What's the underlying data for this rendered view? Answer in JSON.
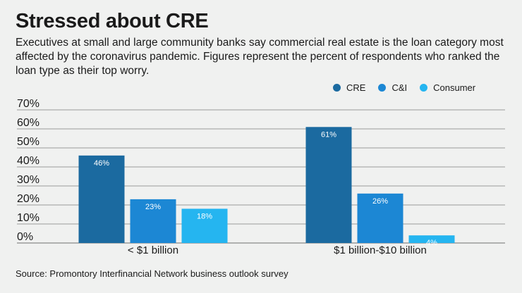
{
  "title": "Stressed about CRE",
  "subtitle": "Executives at small and large community banks say commercial real estate is the loan category most affected by the coronavirus pandemic. Figures represent the percent of respondents who ranked the loan type as their top worry.",
  "source": "Source: Promontory Interfinancial Network business outlook survey",
  "chart_data": {
    "type": "bar",
    "categories": [
      "< $1 billion",
      "$1 billion-$10 billion"
    ],
    "series": [
      {
        "name": "CRE",
        "color": "#1b6aa0",
        "values": [
          46,
          61
        ],
        "labels": [
          "46%",
          "61%"
        ]
      },
      {
        "name": "C&I",
        "color": "#1c87d4",
        "values": [
          23,
          26
        ],
        "labels": [
          "23%",
          "26%"
        ]
      },
      {
        "name": "Consumer",
        "color": "#25b5f0",
        "values": [
          18,
          4
        ],
        "labels": [
          "18%",
          "4%"
        ]
      }
    ],
    "yticks": [
      0,
      10,
      20,
      30,
      40,
      50,
      60,
      70
    ],
    "ytick_labels": [
      "0%",
      "10%",
      "20%",
      "30%",
      "40%",
      "50%",
      "60%",
      "70%"
    ],
    "ylim": [
      0,
      70
    ],
    "grid": true,
    "legend_position": "top-right"
  }
}
